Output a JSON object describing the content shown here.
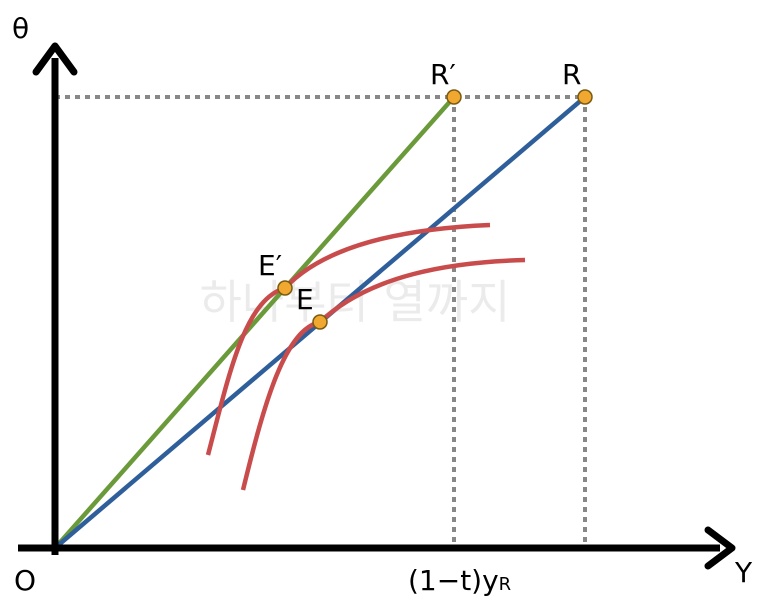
{
  "axes": {
    "y_label": "θ",
    "x_label": "Y",
    "origin": "O"
  },
  "points": {
    "r_prime": "R′",
    "r": "R",
    "e_prime": "E′",
    "e": "E"
  },
  "x_mark": {
    "main": "(1−t)y",
    "subscript": "R"
  },
  "watermark": "하나부터 열까지"
}
